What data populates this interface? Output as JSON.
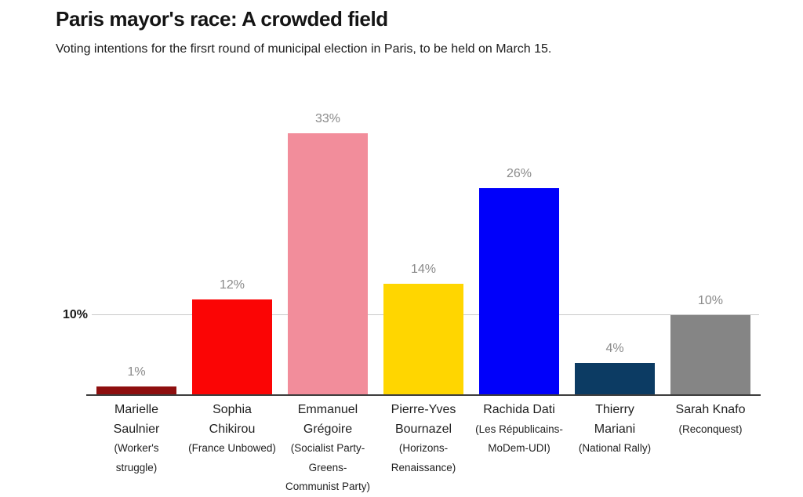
{
  "header": {
    "title": "Paris mayor's race: A crowded field",
    "subtitle": "Voting intentions for the firsrt round of municipal election in Paris, to be held on March 15."
  },
  "chart_data": {
    "type": "bar",
    "title": "Paris mayor's race: A crowded field",
    "subtitle": "Voting intentions for the firsrt round of municipal election in Paris, to be held on March 15.",
    "xlabel": "",
    "ylabel": "",
    "ylim": [
      0,
      35
    ],
    "grid": "single horizontal gridline at 10%",
    "legend": "none",
    "y_axis": {
      "tick_labels": [
        "10%"
      ],
      "gridline_values": [
        10
      ],
      "unit": "%"
    },
    "categories": [
      "Marielle Saulnier (Worker's struggle)",
      "Sophia Chikirou (France Unbowed)",
      "Emmanuel Grégoire (Socialist Party-Greens-Communist Party)",
      "Pierre-Yves Bournazel (Horizons-Renaissance)",
      "Rachida Dati (Les Républicains-MoDem-UDI)",
      "Thierry Mariani (National Rally)",
      "Sarah Knafo (Reconquest)"
    ],
    "values": [
      1,
      12,
      33,
      14,
      26,
      4,
      10
    ],
    "bars": [
      {
        "candidate": "Marielle Saulnier",
        "candidate_lines": [
          "Marielle",
          "Saulnier"
        ],
        "party": "Worker's struggle",
        "party_lines": [
          "(Worker's",
          "struggle)"
        ],
        "value": 1,
        "value_label": "1%",
        "color": "#8e0f0f"
      },
      {
        "candidate": "Sophia Chikirou",
        "candidate_lines": [
          "Sophia",
          "Chikirou"
        ],
        "party": "France Unbowed",
        "party_lines": [
          "(France Unbowed)"
        ],
        "value": 12,
        "value_label": "12%",
        "color": "#fb0505"
      },
      {
        "candidate": "Emmanuel Grégoire",
        "candidate_lines": [
          "Emmanuel",
          "Grégoire"
        ],
        "party": "Socialist Party-Greens-Communist Party",
        "party_lines": [
          "(Socialist Party-",
          "Greens-",
          "Communist Party)"
        ],
        "value": 33,
        "value_label": "33%",
        "color": "#f28d9b"
      },
      {
        "candidate": "Pierre-Yves Bournazel",
        "candidate_lines": [
          "Pierre-Yves",
          "Bournazel"
        ],
        "party": "Horizons-Renaissance",
        "party_lines": [
          "(Horizons-",
          "Renaissance)"
        ],
        "value": 14,
        "value_label": "14%",
        "color": "#ffd600"
      },
      {
        "candidate": "Rachida Dati",
        "candidate_lines": [
          "Rachida Dati"
        ],
        "party": "Les Républicains-MoDem-UDI",
        "party_lines": [
          "(Les Républicains-",
          "MoDem-UDI)"
        ],
        "value": 26,
        "value_label": "26%",
        "color": "#0000fa"
      },
      {
        "candidate": "Thierry Mariani",
        "candidate_lines": [
          "Thierry",
          "Mariani"
        ],
        "party": "National Rally",
        "party_lines": [
          "(National Rally)"
        ],
        "value": 4,
        "value_label": "4%",
        "color": "#0c3b63"
      },
      {
        "candidate": "Sarah Knafo",
        "candidate_lines": [
          "Sarah Knafo"
        ],
        "party": "Reconquest",
        "party_lines": [
          "(Reconquest)"
        ],
        "value": 10,
        "value_label": "10%",
        "color": "#858585"
      }
    ]
  },
  "style": {
    "background": "#ffffff",
    "title_color": "#141414",
    "value_label_color": "#8a8a8a",
    "gridline_color": "#c9c9c9",
    "axis_line_color": "#3d3d3d"
  }
}
